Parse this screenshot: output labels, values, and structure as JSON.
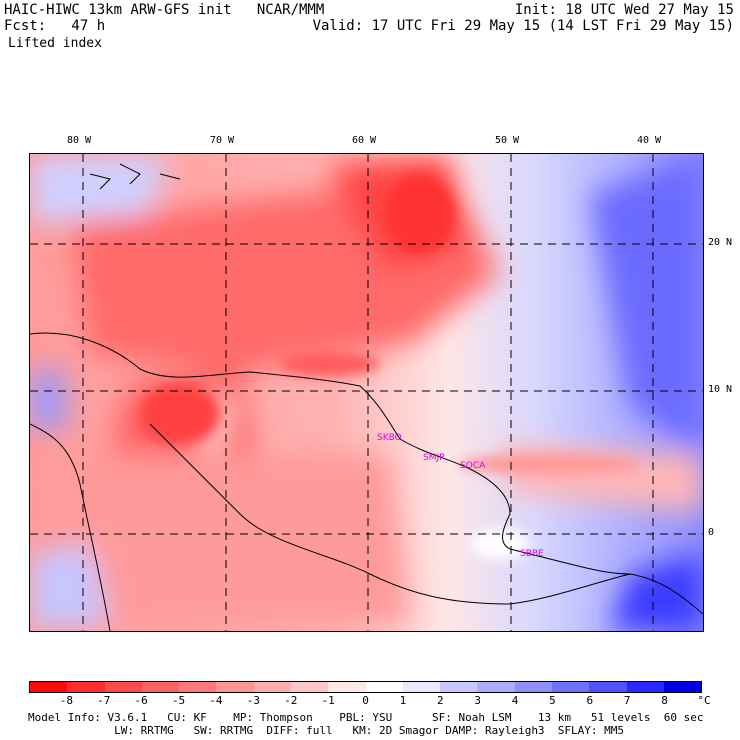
{
  "header": {
    "left_line1": "HAIC-HIWC 13km ARW-GFS init   NCAR/MMM",
    "left_line2": "Fcst:   47 h",
    "right_line1": "Init: 18 UTC Wed 27 May 15",
    "right_line2": "Valid: 17 UTC Fri 29 May 15 (14 LST Fri 29 May 15)",
    "field_name": "Lifted index"
  },
  "map": {
    "lon_ticks": [
      "80 W",
      "70 W",
      "60 W",
      "50 W",
      "40 W"
    ],
    "lat_ticks": [
      "20 N",
      "10 N",
      "0"
    ],
    "stations": [
      "SKBO",
      "SMJP",
      "SOCA",
      "SBBE"
    ]
  },
  "colorbar": {
    "labels": [
      "-8",
      "-7",
      "-6",
      "-5",
      "-4",
      "-3",
      "-2",
      "-1",
      "0",
      "1",
      "2",
      "3",
      "4",
      "5",
      "6",
      "7",
      "8"
    ],
    "unit": "°C",
    "colors": [
      "#ff0a0a",
      "#ff2d2d",
      "#ff4a4a",
      "#ff6262",
      "#ff7a7a",
      "#ff9494",
      "#ffadad",
      "#ffc8c8",
      "#ffe8e8",
      "#ffffff",
      "#e8e8ff",
      "#c8c8ff",
      "#adadff",
      "#8f8fff",
      "#7070ff",
      "#5050ff",
      "#2828ff",
      "#0000e6"
    ]
  },
  "footer": {
    "line1": "Model Info: V3.6.1   CU: KF    MP: Thompson    PBL: YSU      SF: Noah LSM    13 km   51 levels  60 sec",
    "line2": "             LW: RRTMG   SW: RRTMG  DIFF: full   KM: 2D Smagor DAMP: Rayleigh3  SFLAY: MM5"
  }
}
